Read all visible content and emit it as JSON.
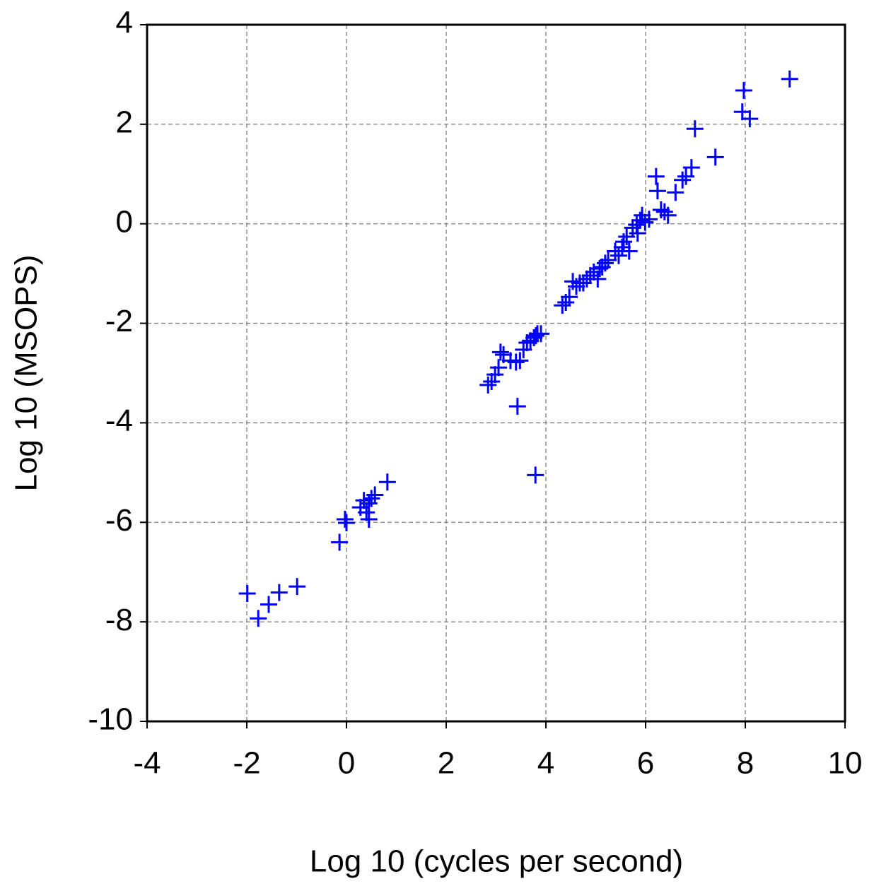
{
  "chart_data": {
    "type": "scatter",
    "x_label": "Log 10 (cycles per second)",
    "y_label": "Log 10 (MSOPS)",
    "xlim": [
      -4,
      10
    ],
    "ylim": [
      -10,
      4
    ],
    "xticks": [
      -4,
      -2,
      0,
      2,
      4,
      6,
      8,
      10
    ],
    "yticks": [
      -10,
      -8,
      -6,
      -4,
      -2,
      0,
      2,
      4
    ],
    "grid": true,
    "marker": "plus",
    "series": [
      {
        "color": "#0000ff",
        "x": [
          -1.99,
          -1.77,
          -1.56,
          -1.35,
          -0.99,
          -0.14,
          0.0,
          -0.03,
          0.28,
          0.35,
          0.4,
          0.45,
          0.5,
          0.45,
          0.57,
          0.82,
          2.84,
          2.91,
          2.98,
          3.05,
          3.09,
          3.15,
          3.29,
          3.4,
          3.48,
          3.55,
          3.62,
          3.69,
          3.76,
          3.8,
          3.83,
          3.9,
          3.43,
          3.79,
          4.33,
          4.4,
          4.47,
          4.54,
          4.61,
          4.68,
          4.75,
          4.82,
          4.89,
          4.96,
          5.04,
          5.08,
          5.13,
          5.19,
          5.25,
          5.39,
          5.46,
          5.53,
          5.56,
          5.62,
          5.67,
          5.74,
          5.82,
          5.84,
          5.89,
          5.93,
          5.99,
          6.07,
          6.24,
          6.21,
          6.31,
          6.38,
          6.45,
          6.6,
          6.74,
          6.81,
          6.92,
          6.99,
          7.4,
          7.97,
          7.94,
          8.09,
          8.89
        ],
        "values": [
          -7.43,
          -7.93,
          -7.65,
          -7.41,
          -7.29,
          -6.4,
          -6.01,
          -5.94,
          -5.7,
          -5.56,
          -5.8,
          -5.62,
          -5.52,
          -5.94,
          -5.45,
          -5.19,
          -3.24,
          -3.17,
          -3.03,
          -2.89,
          -2.58,
          -2.63,
          -2.75,
          -2.78,
          -2.75,
          -2.53,
          -2.39,
          -2.35,
          -2.29,
          -2.25,
          -2.21,
          -2.21,
          -3.67,
          -5.05,
          -1.64,
          -1.58,
          -1.47,
          -1.16,
          -1.26,
          -1.19,
          -1.19,
          -1.11,
          -1.04,
          -0.97,
          -1.11,
          -0.9,
          -0.87,
          -0.79,
          -0.73,
          -0.55,
          -0.64,
          -0.47,
          -0.36,
          -0.26,
          -0.55,
          -0.08,
          -0.02,
          -0.19,
          0.07,
          0.17,
          0.03,
          0.09,
          0.66,
          0.95,
          0.28,
          0.24,
          0.17,
          0.63,
          0.88,
          0.95,
          1.13,
          1.91,
          1.34,
          2.68,
          2.25,
          2.11,
          2.91
        ]
      }
    ]
  }
}
